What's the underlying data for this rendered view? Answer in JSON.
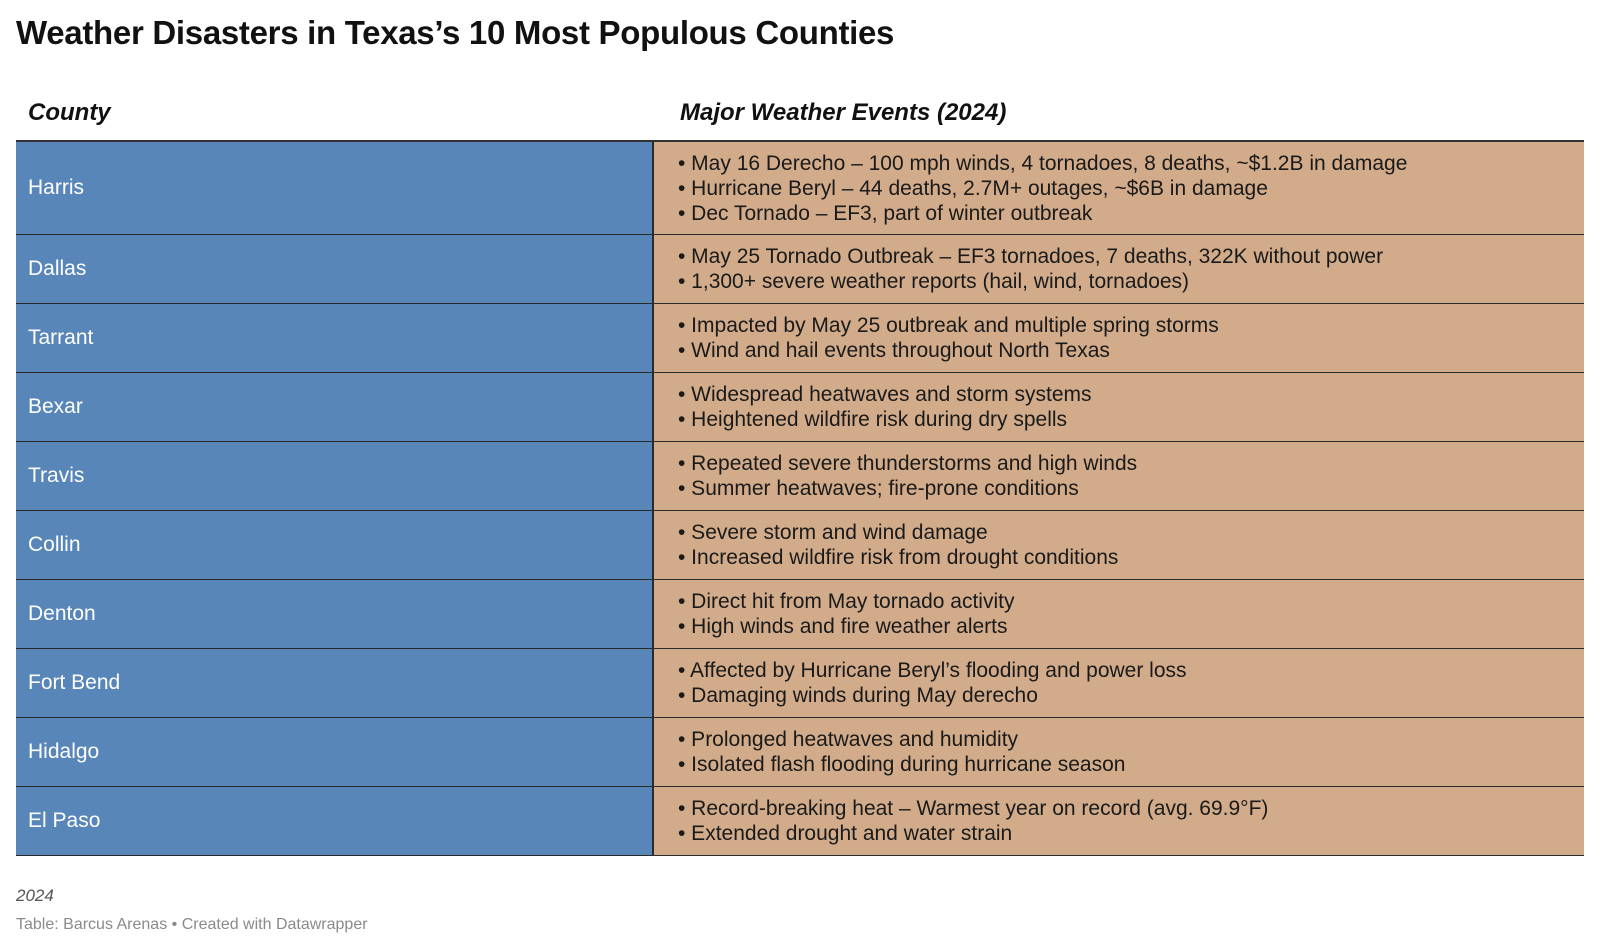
{
  "title": "Weather Disasters in Texas’s 10 Most Populous Counties",
  "table": {
    "headers": {
      "county": "County",
      "events": "Major Weather Events (2024)"
    },
    "rows": [
      {
        "county": "Harris",
        "events": [
          "• May 16 Derecho – 100 mph winds, 4 tornadoes, 8 deaths, ~$1.2B in damage",
          "• Hurricane Beryl – 44 deaths, 2.7M+ outages, ~$6B in damage",
          "• Dec Tornado – EF3, part of winter outbreak"
        ]
      },
      {
        "county": "Dallas",
        "events": [
          "• May 25 Tornado Outbreak – EF3 tornadoes, 7 deaths, 322K without power",
          "• 1,300+ severe weather reports (hail, wind, tornadoes)"
        ]
      },
      {
        "county": "Tarrant",
        "events": [
          "• Impacted by May 25 outbreak and multiple spring storms",
          "• Wind and hail events throughout North Texas"
        ]
      },
      {
        "county": "Bexar",
        "events": [
          "• Widespread heatwaves and storm systems",
          "• Heightened wildfire risk during dry spells"
        ]
      },
      {
        "county": "Travis",
        "events": [
          "• Repeated severe thunderstorms and high winds",
          "• Summer heatwaves; fire-prone conditions"
        ]
      },
      {
        "county": "Collin",
        "events": [
          "• Severe storm and wind damage",
          "• Increased wildfire risk from drought conditions"
        ]
      },
      {
        "county": "Denton",
        "events": [
          "• Direct hit from May tornado activity",
          "• High winds and fire weather alerts"
        ]
      },
      {
        "county": "Fort Bend",
        "events": [
          "• Affected by Hurricane Beryl’s flooding and power loss",
          "• Damaging winds during May derecho"
        ]
      },
      {
        "county": "Hidalgo",
        "events": [
          "• Prolonged heatwaves and humidity",
          "• Isolated flash flooding during hurricane season"
        ]
      },
      {
        "county": "El Paso",
        "events": [
          "• Record-breaking heat – Warmest year on record (avg. 69.9°F)",
          "• Extended drought and water strain"
        ]
      }
    ]
  },
  "footer": {
    "note": "2024",
    "source": "Table: Barcus Arenas • Created with Datawrapper"
  },
  "colors": {
    "county_cell": "#5886b8",
    "events_cell": "#d1ab8a"
  }
}
